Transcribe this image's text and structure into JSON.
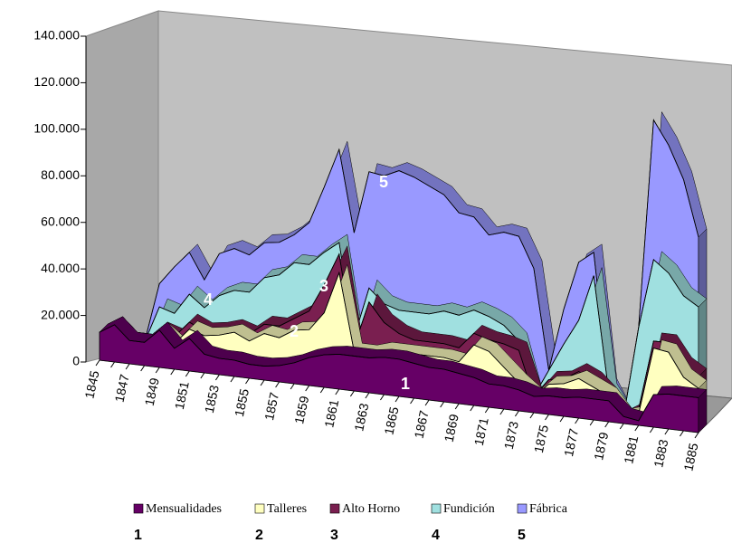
{
  "chart_data": {
    "type": "area3d_stacked",
    "categories": [
      "1845",
      null,
      "1847",
      null,
      "1849",
      null,
      "1851",
      null,
      "1853",
      null,
      "1855",
      null,
      "1857",
      null,
      "1859",
      null,
      "1861",
      null,
      "1863",
      null,
      "1865",
      null,
      "1867",
      null,
      "1869",
      null,
      "1871",
      null,
      "1873",
      null,
      "1875",
      null,
      "1877",
      null,
      "1879",
      null,
      "1881",
      null,
      "1883",
      null,
      "1885"
    ],
    "series": [
      {
        "name": "Mensualidades",
        "color": "#660066",
        "values": [
          12000,
          16000,
          10000,
          10000,
          16000,
          9000,
          14000,
          8000,
          7000,
          7000,
          6000,
          6000,
          7000,
          9000,
          12000,
          14000,
          15000,
          15000,
          15000,
          16000,
          16000,
          15000,
          14000,
          14000,
          13000,
          12000,
          10000,
          10000,
          9000,
          7000,
          8000,
          8000,
          9000,
          9000,
          9000,
          3000,
          2000,
          14000,
          15000,
          15000,
          15000
        ]
      },
      {
        "name": "Talleres",
        "color": "#FFFFC0",
        "values": [
          0,
          0,
          0,
          0,
          0,
          2000,
          4000,
          8000,
          10000,
          12000,
          10000,
          14000,
          12000,
          14000,
          12000,
          18000,
          35000,
          2000,
          2000,
          3000,
          3000,
          4000,
          5000,
          5000,
          5000,
          14000,
          14000,
          8000,
          3000,
          0,
          5000,
          6000,
          8000,
          5000,
          2000,
          0,
          3000,
          20000,
          18000,
          8000,
          4000
        ]
      },
      {
        "name": "Alto Horno",
        "color": "#7A1F50",
        "values": [
          0,
          0,
          0,
          0,
          0,
          3000,
          3000,
          2000,
          2000,
          2000,
          3000,
          4000,
          5000,
          5000,
          8000,
          12000,
          8000,
          2000,
          22000,
          12000,
          8000,
          6000,
          6000,
          6000,
          6000,
          5000,
          5000,
          10000,
          14000,
          0,
          2000,
          2000,
          3000,
          3000,
          0,
          0,
          2000,
          3000,
          4000,
          5000,
          5000
        ]
      },
      {
        "name": "Fundición",
        "color": "#A0E0E0",
        "values": [
          0,
          0,
          0,
          0,
          10000,
          10000,
          12000,
          10000,
          15000,
          16000,
          18000,
          20000,
          22000,
          24000,
          20000,
          14000,
          5000,
          4000,
          6000,
          8000,
          10000,
          12000,
          12000,
          14000,
          14000,
          10000,
          10000,
          8000,
          4000,
          0,
          4000,
          15000,
          22000,
          45000,
          2000,
          0,
          35000,
          35000,
          30000,
          30000,
          30000
        ]
      },
      {
        "name": "Fábrica",
        "color": "#9999FF",
        "values": [
          0,
          0,
          0,
          0,
          10000,
          20000,
          18000,
          12000,
          18000,
          18000,
          16000,
          15000,
          14000,
          12000,
          18000,
          28000,
          40000,
          45000,
          50000,
          55000,
          60000,
          58000,
          55000,
          50000,
          44000,
          40000,
          35000,
          40000,
          45000,
          55000,
          0,
          15000,
          25000,
          10000,
          2000,
          0,
          0,
          60000,
          55000,
          50000,
          30000
        ]
      }
    ],
    "ylim": [
      0,
      140000
    ],
    "yticks": [
      0,
      {
        "value": 20000,
        "label": "20.000"
      },
      {
        "value": 40000,
        "label": "40.000"
      },
      {
        "value": 60000,
        "label": "60.000"
      },
      {
        "value": 80000,
        "label": "80.000"
      },
      {
        "value": 100000,
        "label": "100.000"
      },
      {
        "value": 120000,
        "label": "120.000"
      },
      {
        "value": 140000,
        "label": "140.000"
      }
    ],
    "annotations": [
      "1",
      "2",
      "3",
      "4",
      "5"
    ],
    "legend": "bottom"
  }
}
